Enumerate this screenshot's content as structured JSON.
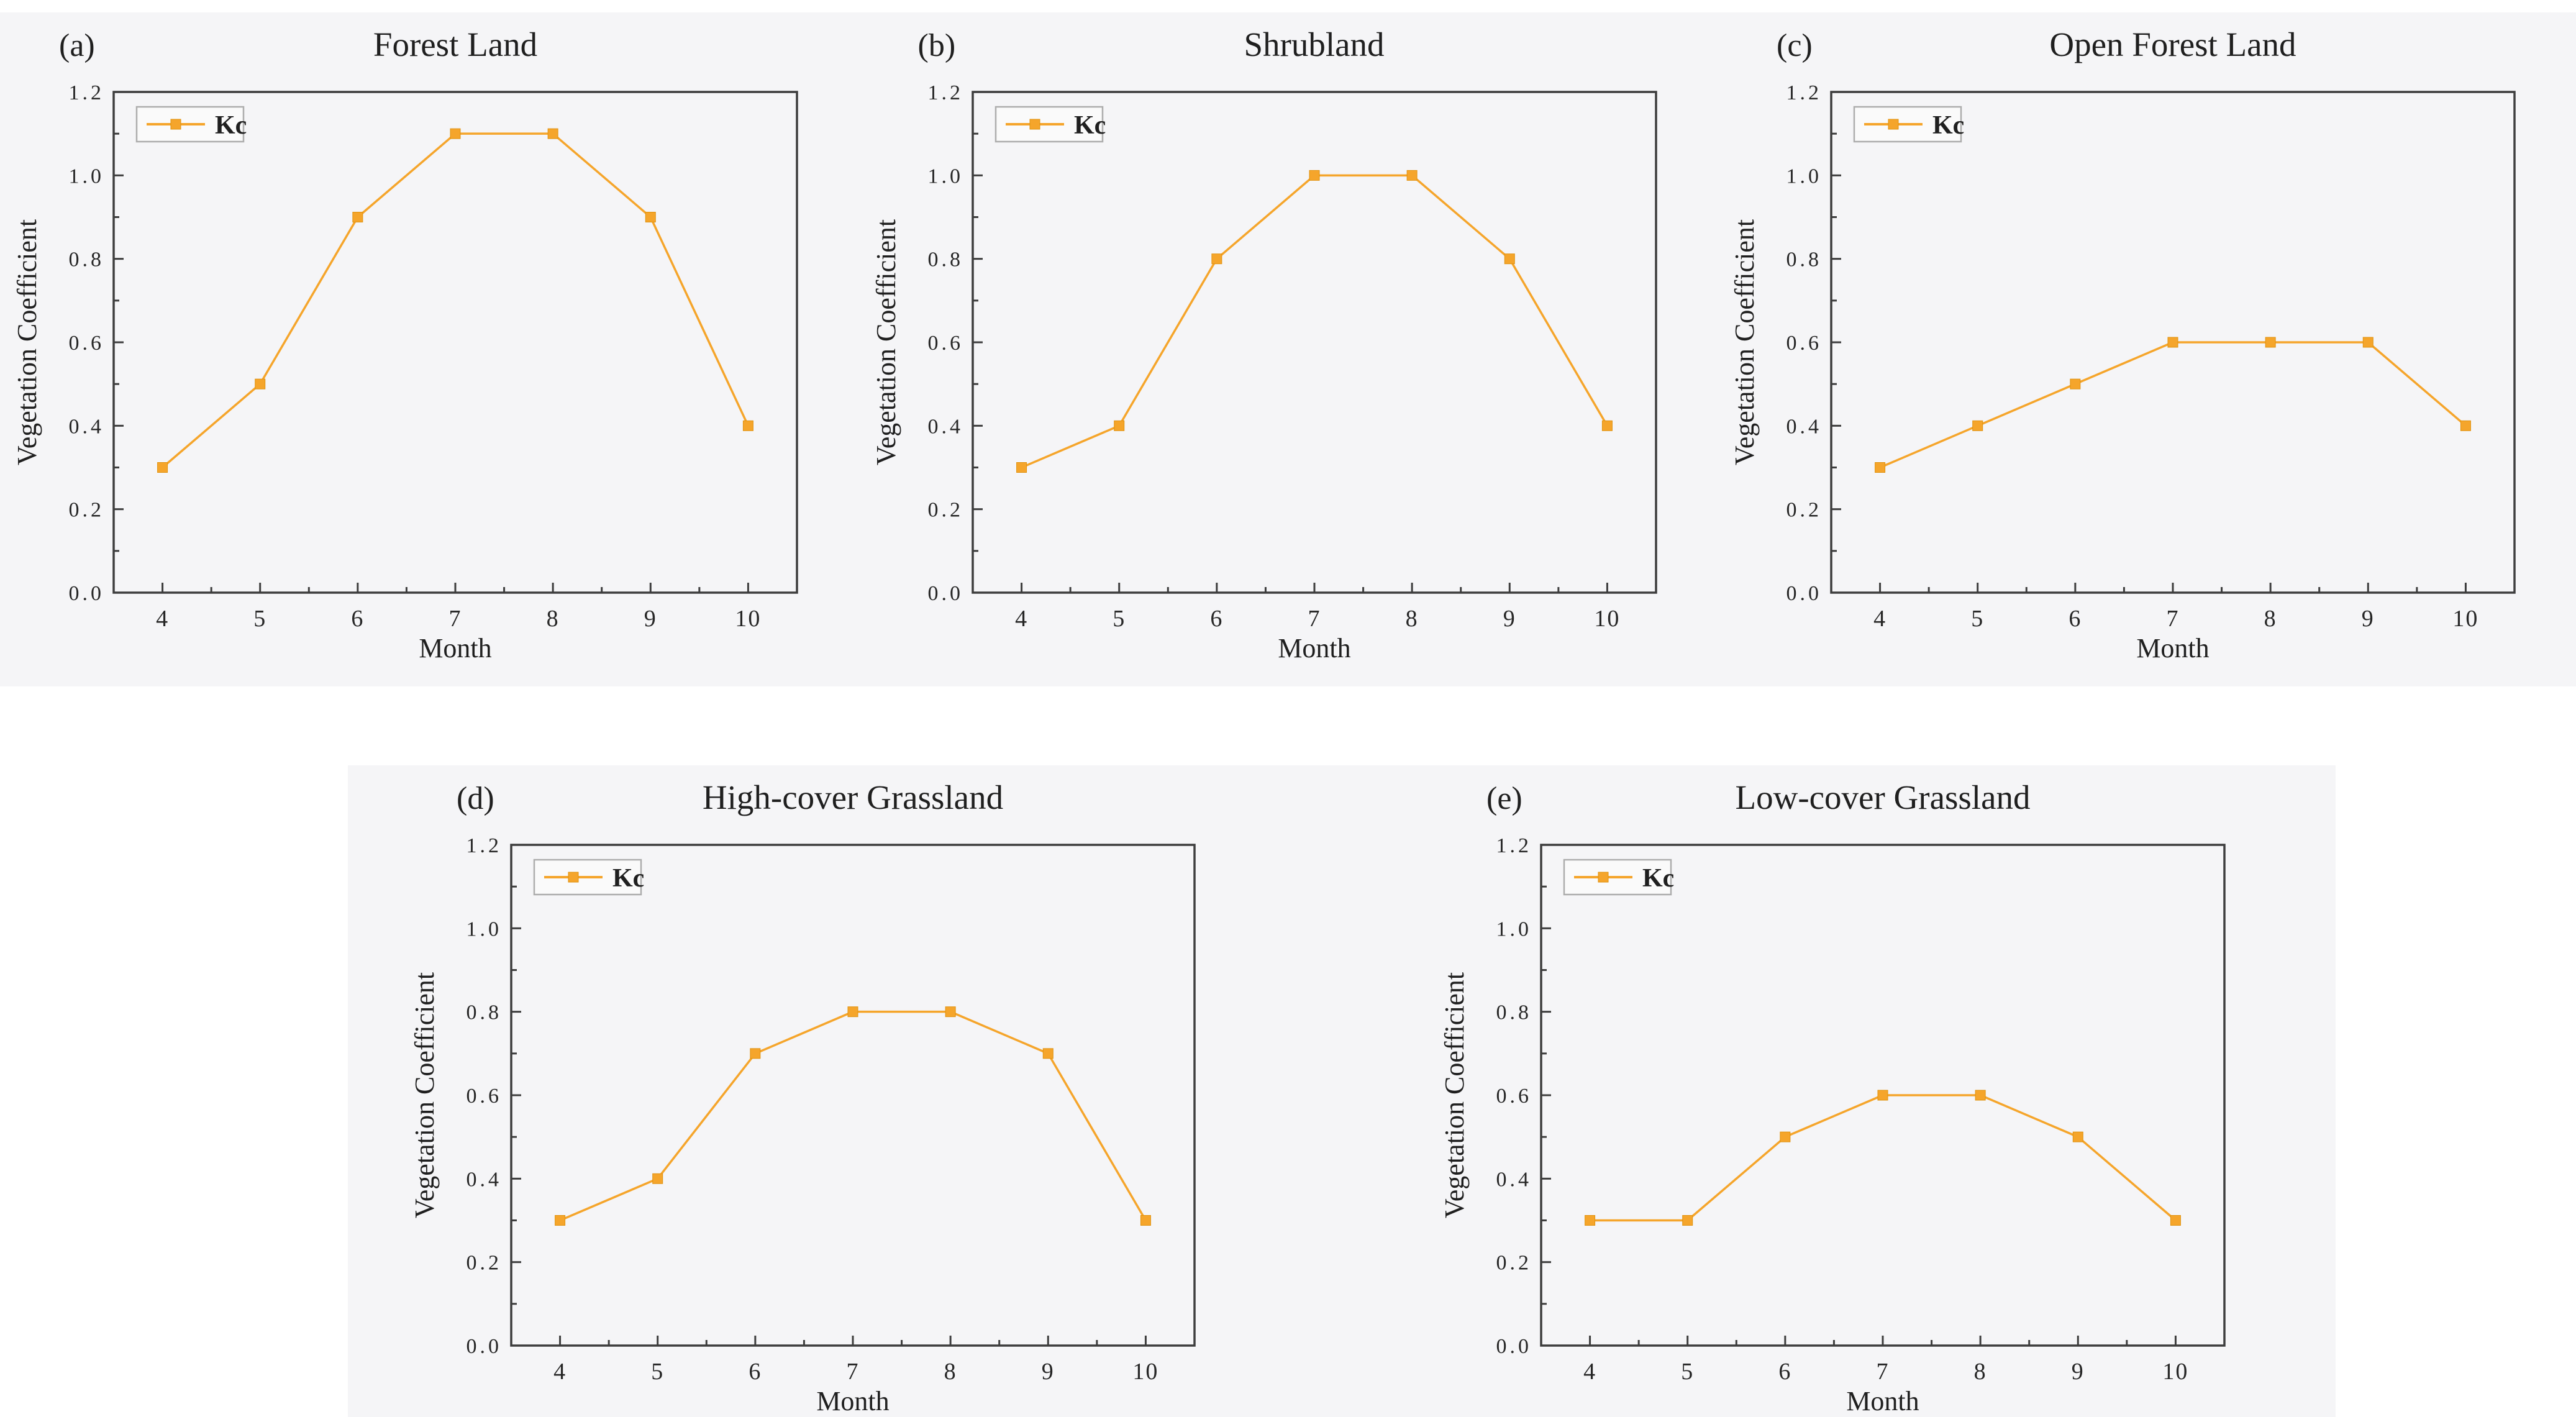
{
  "figure": {
    "background_color": "#ffffff",
    "panel_background": "#f5f5f7",
    "axis_color": "#3d3d3d",
    "text_color": "#262626",
    "title_color": "#1f1f1f",
    "series_color": "#F5A52B",
    "marker_edge_color": "#e0920f",
    "legend_border_color": "#adadad",
    "legend_fill": "#fafafa"
  },
  "chart_data": [
    {
      "type": "line",
      "panel_label": "(a)",
      "title": "Forest Land",
      "legend": "Kc",
      "legend_position": "top-left",
      "xlabel": "Month",
      "ylabel": "Vegetation Coefficient",
      "x": [
        4,
        5,
        6,
        7,
        8,
        9,
        10
      ],
      "values": [
        0.3,
        0.5,
        0.9,
        1.1,
        1.1,
        0.9,
        0.4
      ],
      "xlim": [
        3.5,
        10.5
      ],
      "ylim": [
        0.0,
        1.2
      ],
      "ytick_step": 0.2,
      "marker": "square",
      "grid": false
    },
    {
      "type": "line",
      "panel_label": "(b)",
      "title": "Shrubland",
      "legend": "Kc",
      "legend_position": "top-left",
      "xlabel": "Month",
      "ylabel": "Vegetation Coefficient",
      "x": [
        4,
        5,
        6,
        7,
        8,
        9,
        10
      ],
      "values": [
        0.3,
        0.4,
        0.8,
        1.0,
        1.0,
        0.8,
        0.4
      ],
      "xlim": [
        3.5,
        10.5
      ],
      "ylim": [
        0.0,
        1.2
      ],
      "ytick_step": 0.2,
      "marker": "square",
      "grid": false
    },
    {
      "type": "line",
      "panel_label": "(c)",
      "title": "Open Forest Land",
      "legend": "Kc",
      "legend_position": "top-left",
      "xlabel": "Month",
      "ylabel": "Vegetation Coefficient",
      "x": [
        4,
        5,
        6,
        7,
        8,
        9,
        10
      ],
      "values": [
        0.3,
        0.4,
        0.5,
        0.6,
        0.6,
        0.6,
        0.4
      ],
      "xlim": [
        3.5,
        10.5
      ],
      "ylim": [
        0.0,
        1.2
      ],
      "ytick_step": 0.2,
      "marker": "square",
      "grid": false
    },
    {
      "type": "line",
      "panel_label": "(d)",
      "title": "High-cover Grassland",
      "legend": "Kc",
      "legend_position": "top-left",
      "xlabel": "Month",
      "ylabel": "Vegetation Coefficient",
      "x": [
        4,
        5,
        6,
        7,
        8,
        9,
        10
      ],
      "values": [
        0.3,
        0.4,
        0.7,
        0.8,
        0.8,
        0.7,
        0.3
      ],
      "xlim": [
        3.5,
        10.5
      ],
      "ylim": [
        0.0,
        1.2
      ],
      "ytick_step": 0.2,
      "marker": "square",
      "grid": false
    },
    {
      "type": "line",
      "panel_label": "(e)",
      "title": "Low-cover Grassland",
      "legend": "Kc",
      "legend_position": "top-left",
      "xlabel": "Month",
      "ylabel": "Vegetation Coefficient",
      "x": [
        4,
        5,
        6,
        7,
        8,
        9,
        10
      ],
      "values": [
        0.3,
        0.3,
        0.5,
        0.6,
        0.6,
        0.5,
        0.3
      ],
      "xlim": [
        3.5,
        10.5
      ],
      "ylim": [
        0.0,
        1.2
      ],
      "ytick_step": 0.2,
      "marker": "square",
      "grid": false
    }
  ]
}
